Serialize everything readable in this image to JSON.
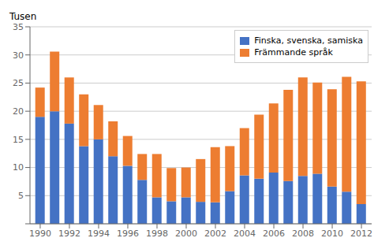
{
  "chart_data": {
    "type": "bar",
    "stacked": true,
    "ylabel": "Tusen",
    "x": [
      1990,
      1991,
      1992,
      1993,
      1994,
      1995,
      1996,
      1997,
      1998,
      1999,
      2000,
      2001,
      2002,
      2003,
      2004,
      2005,
      2006,
      2007,
      2008,
      2009,
      2010,
      2011,
      2012
    ],
    "series": [
      {
        "name": "Finska, svenska, samiska",
        "color": "#4472c4",
        "values": [
          19.0,
          20.0,
          17.8,
          13.8,
          15.0,
          12.0,
          10.3,
          7.8,
          4.7,
          4.0,
          4.7,
          3.9,
          3.8,
          5.8,
          8.6,
          8.0,
          9.1,
          7.6,
          8.5,
          8.9,
          6.6,
          5.7,
          3.5
        ]
      },
      {
        "name": "Främmande språk",
        "color": "#ed7d31",
        "values": [
          5.2,
          10.6,
          8.2,
          9.2,
          6.1,
          6.2,
          5.3,
          4.6,
          7.7,
          5.9,
          5.3,
          7.6,
          9.8,
          8.0,
          8.4,
          11.4,
          12.3,
          16.2,
          17.5,
          16.2,
          17.3,
          20.4,
          21.8
        ]
      }
    ],
    "xlim": [
      1989.3,
      2012.7
    ],
    "xticks": [
      1990,
      1992,
      1994,
      1996,
      1998,
      2000,
      2002,
      2004,
      2006,
      2008,
      2010,
      2012
    ],
    "ylim": [
      0,
      35
    ],
    "yticks": [
      {
        "value": 0,
        "label": ""
      },
      5,
      10,
      15,
      20,
      25,
      30,
      35
    ],
    "grid": true,
    "legend": "upper right"
  }
}
